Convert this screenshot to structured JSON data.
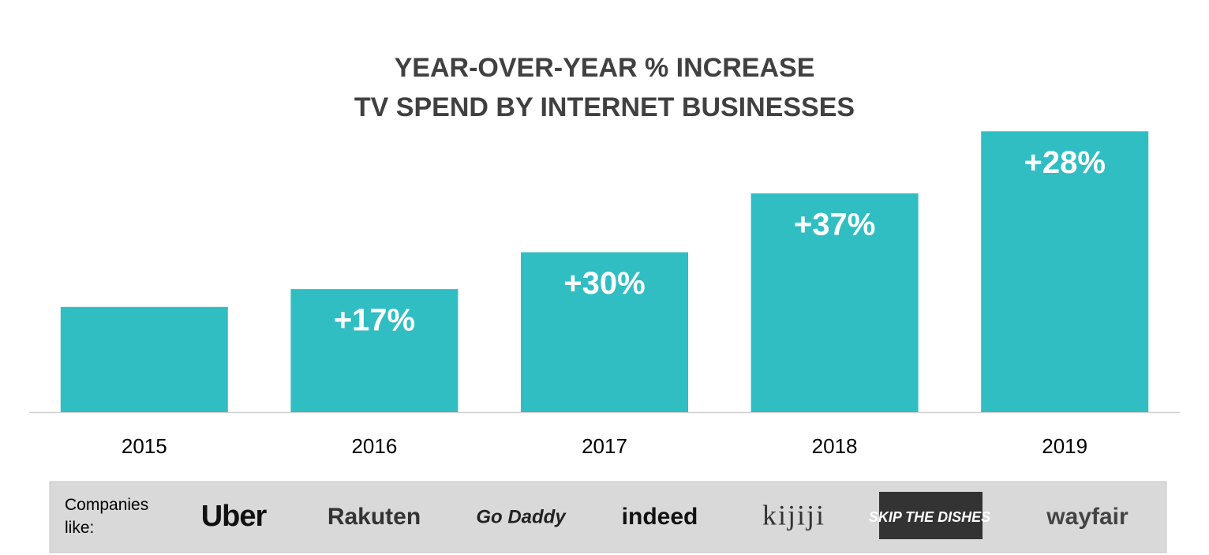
{
  "chart_data": {
    "type": "bar",
    "title": [
      "YEAR-OVER-YEAR % INCREASE",
      "TV SPEND BY INTERNET BUSINESSES"
    ],
    "categories": [
      "2015",
      "2016",
      "2017",
      "2018",
      "2019"
    ],
    "values": [
      100,
      117,
      152,
      208,
      267
    ],
    "growth": [
      null,
      17,
      30,
      37,
      28
    ],
    "growth_labels": [
      null,
      "+17%",
      "+30%",
      "+37%",
      "+28%"
    ],
    "color": "#30bec3",
    "ylim": [
      0,
      280
    ]
  },
  "companies": {
    "label": "Companies like:",
    "logos": [
      "Uber",
      "Rakuten",
      "Go Daddy",
      "indeed",
      "kijiji",
      "SKIP THE DISHES",
      "wayfair"
    ]
  }
}
